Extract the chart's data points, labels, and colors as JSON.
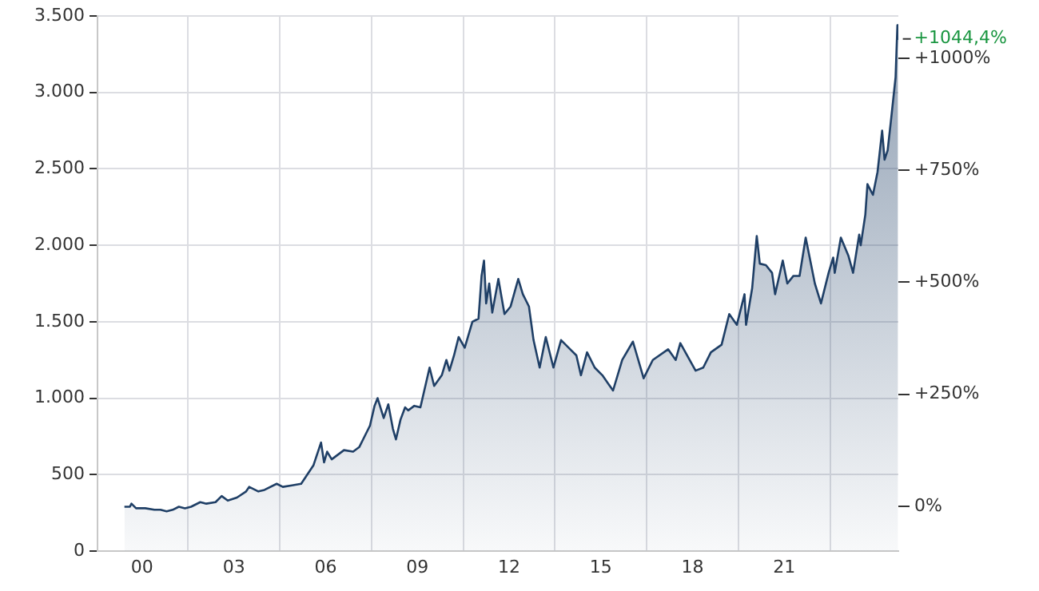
{
  "chart_data": {
    "type": "area",
    "x": [
      1999.42,
      1999.6,
      1999.65,
      1999.8,
      2000.1,
      2000.4,
      2000.6,
      2000.8,
      2001.0,
      2001.2,
      2001.4,
      2001.6,
      2001.9,
      2002.1,
      2002.4,
      2002.6,
      2002.8,
      2003.1,
      2003.4,
      2003.5,
      2003.8,
      2004.0,
      2004.4,
      2004.6,
      2004.9,
      2005.2,
      2005.4,
      2005.6,
      2005.85,
      2005.95,
      2006.05,
      2006.2,
      2006.4,
      2006.6,
      2006.9,
      2007.1,
      2007.3,
      2007.45,
      2007.6,
      2007.7,
      2007.9,
      2008.05,
      2008.2,
      2008.3,
      2008.45,
      2008.6,
      2008.7,
      2008.9,
      2009.1,
      2009.4,
      2009.55,
      2009.8,
      2009.95,
      2010.05,
      2010.2,
      2010.35,
      2010.55,
      2010.8,
      2011.0,
      2011.1,
      2011.18,
      2011.25,
      2011.35,
      2011.45,
      2011.65,
      2011.85,
      2012.05,
      2012.3,
      2012.45,
      2012.65,
      2012.8,
      2013.0,
      2013.2,
      2013.45,
      2013.7,
      2014.0,
      2014.2,
      2014.35,
      2014.55,
      2014.8,
      2015.05,
      2015.4,
      2015.7,
      2016.05,
      2016.4,
      2016.7,
      2017.2,
      2017.45,
      2017.6,
      2018.1,
      2018.35,
      2018.6,
      2018.95,
      2019.2,
      2019.45,
      2019.7,
      2019.75,
      2019.95,
      2020.1,
      2020.2,
      2020.4,
      2020.6,
      2020.7,
      2020.95,
      2021.1,
      2021.3,
      2021.5,
      2021.7,
      2022.0,
      2022.2,
      2022.45,
      2022.6,
      2022.65,
      2022.85,
      2023.1,
      2023.25,
      2023.45,
      2023.5,
      2023.65,
      2023.72,
      2023.9,
      2024.05,
      2024.2,
      2024.28,
      2024.38,
      2024.48,
      2024.56,
      2024.64,
      2024.7,
      2024.72
    ],
    "series": [
      {
        "color": "#1f3f66",
        "values": [
          290,
          290,
          310,
          280,
          280,
          270,
          270,
          260,
          270,
          290,
          280,
          290,
          320,
          310,
          320,
          360,
          330,
          350,
          390,
          420,
          390,
          400,
          440,
          420,
          430,
          440,
          500,
          560,
          710,
          580,
          650,
          600,
          630,
          660,
          650,
          680,
          760,
          820,
          950,
          1000,
          870,
          960,
          800,
          730,
          860,
          940,
          920,
          950,
          940,
          1200,
          1080,
          1150,
          1250,
          1180,
          1280,
          1400,
          1330,
          1500,
          1520,
          1800,
          1900,
          1620,
          1750,
          1560,
          1780,
          1550,
          1600,
          1780,
          1680,
          1600,
          1380,
          1200,
          1400,
          1200,
          1380,
          1320,
          1280,
          1150,
          1300,
          1200,
          1150,
          1050,
          1250,
          1370,
          1130,
          1250,
          1320,
          1250,
          1360,
          1180,
          1200,
          1300,
          1350,
          1550,
          1480,
          1680,
          1480,
          1720,
          2060,
          1880,
          1870,
          1820,
          1680,
          1900,
          1750,
          1800,
          1800,
          2050,
          1750,
          1620,
          1820,
          1920,
          1820,
          2050,
          1930,
          1820,
          2070,
          2000,
          2200,
          2400,
          2330,
          2480,
          2750,
          2560,
          2620,
          2800,
          2950,
          3100,
          3440,
          3350
        ]
      }
    ],
    "xlim": [
      1998.54,
      2024.73
    ],
    "xticks": [
      {
        "value": 2000,
        "label": "00"
      },
      {
        "value": 2001.5,
        "label": null
      },
      {
        "value": 2003,
        "label": "03"
      },
      {
        "value": 2004.5,
        "label": null
      },
      {
        "value": 2006,
        "label": "06"
      },
      {
        "value": 2007.5,
        "label": null
      },
      {
        "value": 2009,
        "label": "09"
      },
      {
        "value": 2010.5,
        "label": null
      },
      {
        "value": 2012,
        "label": "12"
      },
      {
        "value": 2013.5,
        "label": null
      },
      {
        "value": 2015,
        "label": "15"
      },
      {
        "value": 2016.5,
        "label": null
      },
      {
        "value": 2018,
        "label": "18"
      },
      {
        "value": 2019.5,
        "label": null
      },
      {
        "value": 2021,
        "label": "21"
      },
      {
        "value": 2022.5,
        "label": null
      }
    ],
    "ylim": [
      0,
      3500
    ],
    "yticks": [
      0,
      500,
      {
        "value": 1000,
        "label": "1.000"
      },
      {
        "value": 1500,
        "label": "1.500"
      },
      {
        "value": 2000,
        "label": "2.000"
      },
      {
        "value": 2500,
        "label": "2.500"
      },
      {
        "value": 3000,
        "label": "3.000"
      },
      {
        "value": 3500,
        "label": "3.500"
      }
    ],
    "y2lim": [
      -100,
      1094.5
    ],
    "y2ticks": [
      {
        "value": 0,
        "label": "0%"
      },
      {
        "value": 250,
        "label": "+250%"
      },
      {
        "value": 500,
        "label": "+500%"
      },
      {
        "value": 750,
        "label": "+750%"
      },
      {
        "value": 1000,
        "label": "+1000%"
      }
    ],
    "annotations": [
      {
        "text": "+1044,4%",
        "x": 2024.72,
        "y": 3350
      }
    ],
    "grid": true
  }
}
